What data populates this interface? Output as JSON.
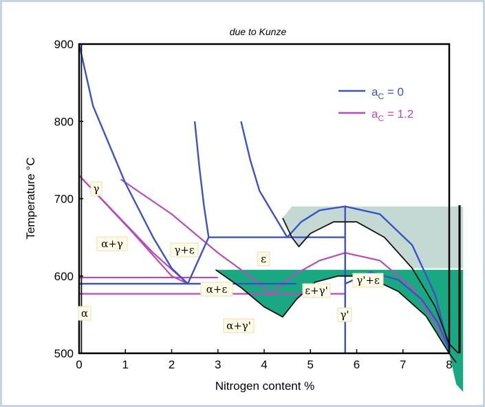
{
  "chart_data": {
    "type": "line",
    "title": "due to Kunze",
    "xlabel": "Nitrogen content %",
    "ylabel": "Temperature °C",
    "xlim": [
      0,
      8
    ],
    "ylim": [
      500,
      900
    ],
    "xticks": [
      "0",
      "1",
      "2",
      "3",
      "4",
      "5",
      "6",
      "7",
      "8"
    ],
    "yticks": [
      "500",
      "600",
      "700",
      "800",
      "900"
    ],
    "legend_position": "top-right",
    "series": [
      {
        "name": "aC = 0",
        "color": "#3b52c4"
      },
      {
        "name": "aC = 1.2",
        "color": "#b84bb8"
      }
    ],
    "legend_labels": [
      {
        "main": "a",
        "sub": "C",
        "rest": " = 0"
      },
      {
        "main": "a",
        "sub": "C",
        "rest": " = 1.2"
      }
    ],
    "region_labels": [
      "γ",
      "α+γ",
      "γ+ε",
      "ε",
      "α+ε",
      "ε+γ'",
      "γ'+ε",
      "α",
      "α+γ'",
      "γ'"
    ],
    "lines_aC0": [
      [
        [
          0.0,
          900
        ],
        [
          0.3,
          820
        ],
        [
          1.0,
          720
        ],
        [
          1.6,
          650
        ],
        [
          2.0,
          610
        ],
        [
          2.35,
          590
        ]
      ],
      [
        [
          2.35,
          590
        ],
        [
          2.8,
          650
        ]
      ],
      [
        [
          2.5,
          800
        ],
        [
          2.6,
          740
        ],
        [
          2.7,
          690
        ],
        [
          2.8,
          650
        ]
      ],
      [
        [
          3.5,
          800
        ],
        [
          3.7,
          750
        ],
        [
          3.9,
          710
        ],
        [
          4.2,
          680
        ],
        [
          4.5,
          650
        ]
      ],
      [
        [
          2.8,
          650
        ],
        [
          5.75,
          650
        ]
      ],
      [
        [
          0.0,
          590
        ],
        [
          4.7,
          590
        ]
      ],
      [
        [
          4.5,
          650
        ],
        [
          4.8,
          670
        ],
        [
          5.2,
          685
        ],
        [
          5.75,
          690
        ],
        [
          6.5,
          680
        ],
        [
          7.2,
          640
        ],
        [
          7.7,
          575
        ],
        [
          8.0,
          505
        ]
      ],
      [
        [
          5.75,
          590
        ],
        [
          6.3,
          605
        ],
        [
          6.9,
          595
        ],
        [
          7.4,
          570
        ],
        [
          7.75,
          540
        ],
        [
          8.0,
          505
        ]
      ],
      [
        [
          5.75,
          690
        ],
        [
          5.75,
          500
        ]
      ]
    ],
    "lines_aC12": [
      [
        [
          0.0,
          730
        ],
        [
          1.1,
          660
        ],
        [
          2.0,
          600
        ],
        [
          2.35,
          590
        ]
      ],
      [
        [
          0.0,
          730
        ],
        [
          0.8,
          680
        ],
        [
          1.6,
          630
        ],
        [
          2.35,
          590
        ]
      ],
      [
        [
          0.9,
          725
        ],
        [
          2.0,
          680
        ],
        [
          3.0,
          630
        ],
        [
          3.8,
          595
        ],
        [
          4.15,
          577
        ]
      ],
      [
        [
          0.0,
          598
        ],
        [
          3.0,
          598
        ]
      ],
      [
        [
          0.0,
          577
        ],
        [
          5.75,
          577
        ]
      ],
      [
        [
          4.15,
          577
        ],
        [
          4.6,
          600
        ],
        [
          5.2,
          620
        ],
        [
          5.75,
          630
        ],
        [
          6.5,
          620
        ],
        [
          7.2,
          585
        ],
        [
          7.7,
          540
        ],
        [
          8.0,
          505
        ]
      ],
      [
        [
          5.75,
          630
        ],
        [
          5.75,
          500
        ]
      ]
    ],
    "lines_black": [
      [
        [
          4.4,
          675
        ],
        [
          4.6,
          650
        ],
        [
          4.75,
          638
        ],
        [
          5.0,
          655
        ],
        [
          5.5,
          670
        ],
        [
          6.0,
          670
        ],
        [
          6.6,
          650
        ],
        [
          7.2,
          610
        ],
        [
          7.7,
          560
        ],
        [
          8.0,
          512
        ],
        [
          8.2,
          500
        ]
      ],
      [
        [
          2.95,
          608
        ],
        [
          3.5,
          585
        ],
        [
          4.0,
          560
        ],
        [
          4.4,
          547
        ],
        [
          4.7,
          570
        ],
        [
          5.1,
          592
        ],
        [
          5.6,
          600
        ],
        [
          6.2,
          600
        ],
        [
          6.9,
          580
        ],
        [
          7.5,
          548
        ],
        [
          8.0,
          500
        ],
        [
          8.15,
          488
        ]
      ],
      [
        [
          0.05,
          900
        ],
        [
          0.05,
          500
        ]
      ]
    ],
    "fills": [
      {
        "color": "#c5d9d4",
        "points": [
          [
            4.4,
            675
          ],
          [
            4.6,
            690
          ],
          [
            8.3,
            690
          ],
          [
            8.3,
            610
          ],
          [
            7.2,
            610
          ],
          [
            6.6,
            650
          ],
          [
            6.0,
            670
          ],
          [
            5.5,
            670
          ],
          [
            5.0,
            655
          ],
          [
            4.75,
            638
          ]
        ]
      },
      {
        "color": "#1aa883",
        "points": [
          [
            2.95,
            608
          ],
          [
            8.3,
            608
          ],
          [
            8.3,
            450
          ],
          [
            8.15,
            460
          ],
          [
            8.0,
            500
          ],
          [
            7.5,
            548
          ],
          [
            6.9,
            580
          ],
          [
            6.2,
            600
          ],
          [
            5.6,
            600
          ],
          [
            5.1,
            592
          ],
          [
            4.7,
            570
          ],
          [
            4.4,
            547
          ],
          [
            4.0,
            560
          ],
          [
            3.5,
            585
          ]
        ]
      }
    ]
  }
}
